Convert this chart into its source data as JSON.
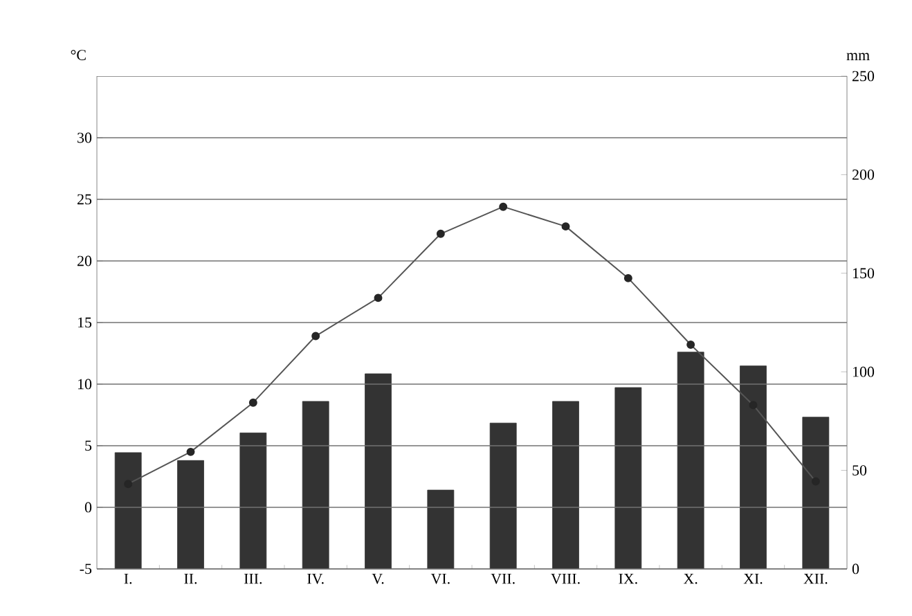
{
  "chart_data": {
    "type": "bar",
    "ylabel": "°C",
    "y2label": "mm",
    "categories": [
      "I.",
      "II.",
      "III.",
      "IV.",
      "V.",
      "VI.",
      "VII.",
      "VIII.",
      "IX.",
      "X.",
      "XI.",
      "XII."
    ],
    "series": [
      {
        "axis": "y2",
        "color": "#333333",
        "values": [
          59,
          55,
          69,
          85,
          99,
          40,
          74,
          85,
          92,
          110,
          103,
          77
        ]
      },
      {
        "type": "line",
        "color": "#555555",
        "marker": "circle",
        "line_style": "solid",
        "values": [
          1.9,
          4.5,
          8.5,
          13.9,
          17.0,
          22.2,
          24.4,
          22.8,
          18.6,
          13.2,
          8.3,
          2.1
        ]
      }
    ],
    "ylim": [
      -5,
      35
    ],
    "yticks": [
      -5,
      0,
      5,
      10,
      15,
      20,
      25,
      30
    ],
    "y2lim": [
      0,
      250
    ],
    "y2ticks": [
      0,
      50,
      100,
      150,
      200,
      250
    ],
    "grid": "y"
  }
}
